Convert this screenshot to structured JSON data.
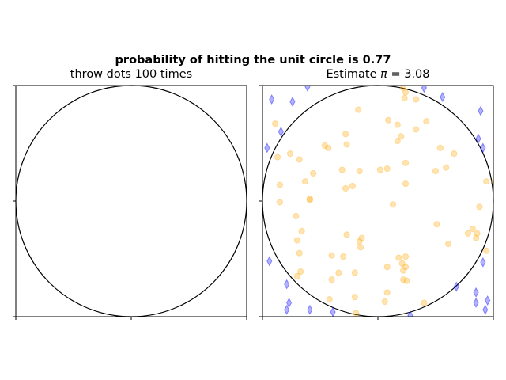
{
  "suptitle": "probability of hitting the unit circle is 0.77",
  "chart_data": [
    {
      "type": "scatter",
      "title": "throw dots 100 times",
      "xlim": [
        -1,
        1
      ],
      "ylim": [
        -1,
        1
      ],
      "grid": false,
      "unit_circle": {
        "center": [
          0,
          0
        ],
        "radius": 1
      },
      "series": []
    },
    {
      "type": "scatter",
      "title": "Estimate π = 3.08",
      "title_prefix": "Estimate ",
      "title_symbol": "π",
      "title_value": " = 3.08",
      "xlim": [
        -1,
        1
      ],
      "ylim": [
        -1,
        1
      ],
      "grid": false,
      "unit_circle": {
        "center": [
          0,
          0
        ],
        "radius": 1
      },
      "series": [
        {
          "marker": "circle",
          "color": "#ffa500",
          "points": [
            [
              0.22,
              0.98
            ],
            [
              0.23,
              0.89
            ],
            [
              0.24,
              0.94
            ],
            [
              0.33,
              0.88
            ],
            [
              -0.17,
              0.79
            ],
            [
              0.09,
              0.7
            ],
            [
              0.17,
              0.66
            ],
            [
              0.42,
              0.69
            ],
            [
              0.2,
              0.56
            ],
            [
              0.33,
              0.62
            ],
            [
              -0.89,
              0.67
            ],
            [
              -0.28,
              0.58
            ],
            [
              -0.46,
              0.48
            ],
            [
              -0.43,
              0.46
            ],
            [
              -0.27,
              0.49
            ],
            [
              0.17,
              0.52
            ],
            [
              0.54,
              0.46
            ],
            [
              0.66,
              0.41
            ],
            [
              -0.87,
              0.38
            ],
            [
              -0.76,
              0.41
            ],
            [
              -0.68,
              0.36
            ],
            [
              0.24,
              0.33
            ],
            [
              0.08,
              0.28
            ],
            [
              0.02,
              0.27
            ],
            [
              -0.56,
              0.24
            ],
            [
              -0.31,
              0.27
            ],
            [
              -0.16,
              0.26
            ],
            [
              -0.63,
              0.17
            ],
            [
              -0.22,
              0.13
            ],
            [
              -0.28,
              0.11
            ],
            [
              0.24,
              0.15
            ],
            [
              0.5,
              0.26
            ],
            [
              0.59,
              0.29
            ],
            [
              -0.85,
              0.14
            ],
            [
              0.94,
              0.17
            ],
            [
              1.01,
              0.17
            ],
            [
              -0.59,
              0.01
            ],
            [
              -0.59,
              0.02
            ],
            [
              -0.85,
              -0.01
            ],
            [
              0.13,
              -0.03
            ],
            [
              0.88,
              -0.05
            ],
            [
              -0.71,
              -0.13
            ],
            [
              0.51,
              -0.2
            ],
            [
              0.82,
              -0.24
            ],
            [
              0.78,
              -0.28
            ],
            [
              0.86,
              -0.28
            ],
            [
              -0.66,
              -0.26
            ],
            [
              -0.27,
              -0.29
            ],
            [
              -0.14,
              -0.32
            ],
            [
              -0.7,
              -0.34
            ],
            [
              -0.16,
              -0.35
            ],
            [
              0.85,
              -0.32
            ],
            [
              0.61,
              -0.37
            ],
            [
              -0.4,
              -0.47
            ],
            [
              -0.3,
              -0.48
            ],
            [
              -0.15,
              -0.4
            ],
            [
              0.94,
              -0.43
            ],
            [
              0.18,
              -0.49
            ],
            [
              0.24,
              -0.48
            ],
            [
              -0.68,
              -0.45
            ],
            [
              0.08,
              -0.57
            ],
            [
              0.21,
              -0.54
            ],
            [
              -0.34,
              -0.62
            ],
            [
              0.22,
              -0.6
            ],
            [
              0.24,
              -0.57
            ],
            [
              -0.7,
              -0.65
            ],
            [
              -0.67,
              -0.61
            ],
            [
              -0.2,
              -0.62
            ],
            [
              -0.4,
              -0.68
            ],
            [
              0.22,
              -0.68
            ],
            [
              0.25,
              -0.69
            ],
            [
              0.08,
              -0.79
            ],
            [
              0.4,
              -0.88
            ],
            [
              -0.2,
              -0.83
            ],
            [
              -0.42,
              -0.85
            ],
            [
              0.06,
              -0.87
            ],
            [
              -0.19,
              -0.97
            ]
          ]
        },
        {
          "marker": "thin_diamond",
          "color": "#0000ff",
          "points": [
            [
              -0.92,
              0.88
            ],
            [
              -0.74,
              0.86
            ],
            [
              -0.61,
              0.99
            ],
            [
              0.4,
              0.98
            ],
            [
              0.56,
              0.9
            ],
            [
              0.89,
              0.78
            ],
            [
              -0.84,
              0.6
            ],
            [
              -0.96,
              0.46
            ],
            [
              0.87,
              0.54
            ],
            [
              0.91,
              0.46
            ],
            [
              0.91,
              -0.53
            ],
            [
              -0.94,
              -0.52
            ],
            [
              0.68,
              -0.74
            ],
            [
              -0.79,
              -0.72
            ],
            [
              0.85,
              -0.79
            ],
            [
              0.85,
              -0.88
            ],
            [
              0.95,
              -0.86
            ],
            [
              -0.77,
              -0.88
            ],
            [
              -0.79,
              -0.94
            ],
            [
              -0.59,
              -0.94
            ],
            [
              -0.39,
              -0.96
            ],
            [
              0.93,
              -0.94
            ],
            [
              0.28,
              -0.99
            ]
          ]
        }
      ]
    }
  ]
}
